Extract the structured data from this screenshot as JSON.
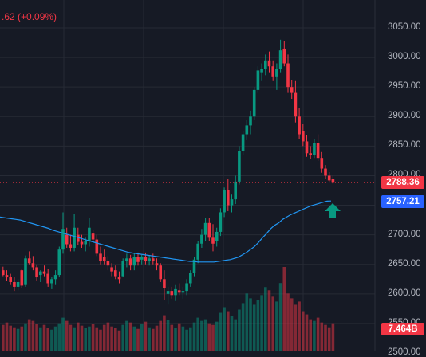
{
  "legend": {
    "text": ".62 (+0.09%)"
  },
  "colors": {
    "up": "#089981",
    "down": "#f23645",
    "ma": "#2196f3",
    "background": "#161a25",
    "grid": "#262a35",
    "axis_text": "#b2b5be"
  },
  "price_axis": {
    "ticks": [
      "3050.00",
      "3000.00",
      "2950.00",
      "2900.00",
      "2850.00",
      "2800.00",
      "2750.00",
      "2700.00",
      "2650.00",
      "2600.00",
      "2550.00",
      "2500.00"
    ]
  },
  "tags": {
    "last_price": "2788.36",
    "moving_average": "2757.21",
    "volume": "7.464B"
  },
  "annotation": {
    "arrow_icon": "up-arrow-icon",
    "color": "#089981"
  },
  "chart_data": {
    "type": "candlestick",
    "ylim": [
      2495,
      3065
    ],
    "last_price": 2788.36,
    "ma_last": 2757.21,
    "candles": [
      [
        2640,
        2646,
        2630,
        2632
      ],
      [
        2632,
        2640,
        2622,
        2628
      ],
      [
        2628,
        2634,
        2615,
        2620
      ],
      [
        2620,
        2628,
        2605,
        2612
      ],
      [
        2612,
        2625,
        2606,
        2620
      ],
      [
        2640,
        2642,
        2610,
        2614
      ],
      [
        2615,
        2665,
        2612,
        2660
      ],
      [
        2660,
        2672,
        2650,
        2652
      ],
      [
        2652,
        2664,
        2640,
        2645
      ],
      [
        2645,
        2650,
        2622,
        2628
      ],
      [
        2632,
        2640,
        2620,
        2638
      ],
      [
        2638,
        2648,
        2630,
        2634
      ],
      [
        2634,
        2642,
        2612,
        2618
      ],
      [
        2618,
        2628,
        2608,
        2625
      ],
      [
        2625,
        2640,
        2615,
        2632
      ],
      [
        2632,
        2680,
        2628,
        2675
      ],
      [
        2675,
        2738,
        2668,
        2710
      ],
      [
        2700,
        2712,
        2678,
        2684
      ],
      [
        2684,
        2700,
        2672,
        2678
      ],
      [
        2678,
        2735,
        2672,
        2712
      ],
      [
        2700,
        2712,
        2682,
        2688
      ],
      [
        2688,
        2700,
        2678,
        2684
      ],
      [
        2684,
        2695,
        2672,
        2690
      ],
      [
        2690,
        2728,
        2680,
        2712
      ],
      [
        2702,
        2708,
        2688,
        2692
      ],
      [
        2692,
        2700,
        2664,
        2668
      ],
      [
        2668,
        2680,
        2650,
        2656
      ],
      [
        2662,
        2675,
        2650,
        2655
      ],
      [
        2655,
        2664,
        2640,
        2648
      ],
      [
        2645,
        2652,
        2630,
        2638
      ],
      [
        2640,
        2648,
        2625,
        2630
      ],
      [
        2628,
        2638,
        2618,
        2625
      ],
      [
        2630,
        2660,
        2628,
        2655
      ],
      [
        2655,
        2668,
        2645,
        2660
      ],
      [
        2660,
        2666,
        2640,
        2648
      ],
      [
        2648,
        2668,
        2640,
        2662
      ],
      [
        2662,
        2670,
        2648,
        2654
      ],
      [
        2658,
        2666,
        2650,
        2662
      ],
      [
        2662,
        2670,
        2650,
        2656
      ],
      [
        2656,
        2665,
        2648,
        2660
      ],
      [
        2660,
        2668,
        2650,
        2655
      ],
      [
        2652,
        2660,
        2640,
        2648
      ],
      [
        2648,
        2652,
        2620,
        2625
      ],
      [
        2625,
        2640,
        2590,
        2610
      ],
      [
        2600,
        2612,
        2582,
        2605
      ],
      [
        2605,
        2612,
        2592,
        2598
      ],
      [
        2598,
        2615,
        2588,
        2608
      ],
      [
        2606,
        2618,
        2598,
        2602
      ],
      [
        2602,
        2612,
        2592,
        2605
      ],
      [
        2605,
        2625,
        2598,
        2618
      ],
      [
        2618,
        2640,
        2612,
        2635
      ],
      [
        2635,
        2662,
        2630,
        2658
      ],
      [
        2658,
        2690,
        2652,
        2685
      ],
      [
        2685,
        2710,
        2678,
        2700
      ],
      [
        2700,
        2728,
        2690,
        2720
      ],
      [
        2720,
        2728,
        2690,
        2695
      ],
      [
        2695,
        2718,
        2672,
        2685
      ],
      [
        2690,
        2712,
        2680,
        2705
      ],
      [
        2705,
        2745,
        2698,
        2738
      ],
      [
        2738,
        2780,
        2730,
        2775
      ],
      [
        2775,
        2795,
        2740,
        2750
      ],
      [
        2750,
        2768,
        2738,
        2760
      ],
      [
        2760,
        2800,
        2752,
        2790
      ],
      [
        2790,
        2850,
        2785,
        2842
      ],
      [
        2842,
        2875,
        2835,
        2870
      ],
      [
        2870,
        2895,
        2860,
        2885
      ],
      [
        2885,
        2910,
        2870,
        2900
      ],
      [
        2900,
        2950,
        2895,
        2945
      ],
      [
        2945,
        2985,
        2940,
        2978
      ],
      [
        2975,
        2990,
        2960,
        2980
      ],
      [
        2980,
        3005,
        2970,
        2995
      ],
      [
        2995,
        3010,
        2975,
        2985
      ],
      [
        2985,
        2995,
        2960,
        2968
      ],
      [
        2968,
        2990,
        2945,
        2980
      ],
      [
        2980,
        3030,
        2975,
        3012
      ],
      [
        3015,
        3028,
        2985,
        2990
      ],
      [
        2990,
        3005,
        2940,
        2950
      ],
      [
        2950,
        2962,
        2930,
        2940
      ],
      [
        2940,
        2960,
        2890,
        2900
      ],
      [
        2900,
        2915,
        2862,
        2870
      ],
      [
        2875,
        2888,
        2850,
        2858
      ],
      [
        2858,
        2868,
        2832,
        2838
      ],
      [
        2838,
        2850,
        2828,
        2835
      ],
      [
        2835,
        2862,
        2830,
        2855
      ],
      [
        2855,
        2870,
        2825,
        2830
      ],
      [
        2830,
        2840,
        2805,
        2812
      ],
      [
        2812,
        2818,
        2795,
        2800
      ],
      [
        2800,
        2806,
        2788,
        2792
      ],
      [
        2794,
        2800,
        2786,
        2788
      ]
    ],
    "volumes": [
      33,
      36,
      32,
      30,
      28,
      31,
      35,
      40,
      38,
      34,
      30,
      33,
      29,
      27,
      31,
      35,
      42,
      38,
      33,
      30,
      36,
      32,
      29,
      31,
      34,
      30,
      27,
      33,
      36,
      31,
      29,
      26,
      33,
      38,
      36,
      31,
      28,
      34,
      37,
      30,
      28,
      32,
      38,
      45,
      39,
      33,
      29,
      35,
      31,
      27,
      30,
      36,
      42,
      38,
      40,
      35,
      33,
      37,
      48,
      55,
      50,
      44,
      40,
      52,
      60,
      72,
      66,
      58,
      64,
      70,
      80,
      76,
      68,
      62,
      85,
      105,
      72,
      66,
      58,
      62,
      50,
      46,
      40,
      38,
      42,
      36,
      33,
      30,
      35
    ],
    "moving_average": [
      2730,
      2729,
      2728,
      2727,
      2726,
      2725,
      2723,
      2721,
      2719,
      2717,
      2715,
      2713,
      2711,
      2708,
      2706,
      2704,
      2702,
      2700,
      2698,
      2696,
      2694,
      2692,
      2690,
      2688,
      2686,
      2684,
      2682,
      2680,
      2678,
      2676,
      2674,
      2672,
      2670,
      2669,
      2668,
      2667,
      2666,
      2665,
      2664,
      2663,
      2662,
      2661,
      2660,
      2659,
      2658,
      2657,
      2656,
      2655,
      2655,
      2654,
      2654,
      2654,
      2654,
      2654,
      2655,
      2656,
      2657,
      2658,
      2660,
      2662,
      2666,
      2670,
      2675,
      2680,
      2687,
      2695,
      2702,
      2710,
      2716,
      2720,
      2726,
      2730,
      2734,
      2737,
      2740,
      2743,
      2746,
      2749,
      2751,
      2753,
      2755,
      2757,
      2757.21
    ]
  }
}
